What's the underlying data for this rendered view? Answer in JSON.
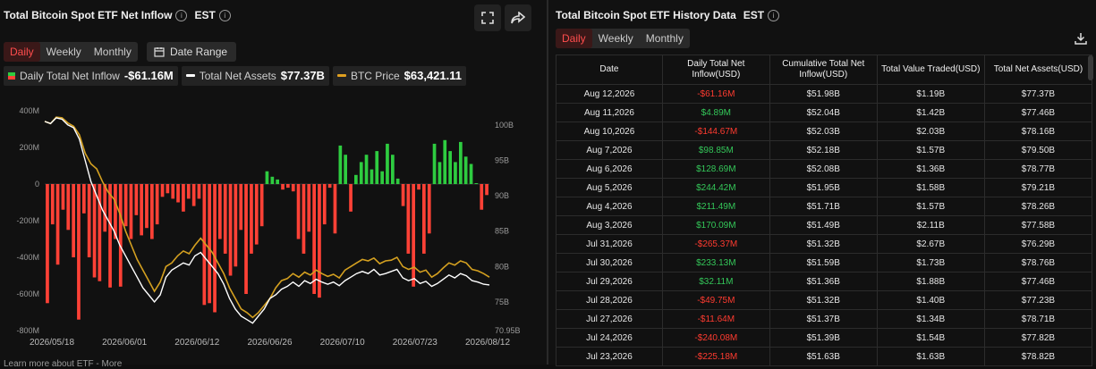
{
  "left_panel": {
    "title": "Total Bitcoin Spot ETF Net Inflow",
    "timezone": "EST",
    "tabs": [
      "Daily",
      "Weekly",
      "Monthly"
    ],
    "active_tab": "Daily",
    "date_range_label": "Date Range",
    "legend": [
      {
        "label": "Daily Total Net Inflow",
        "value": "-$61.16M",
        "color": "#ff4d4d"
      },
      {
        "label": "Total Net Assets",
        "value": "$77.37B",
        "color": "#ffffff"
      },
      {
        "label": "BTC Price",
        "value": "$63,421.11",
        "color": "#e0a020"
      }
    ],
    "footer_text": "Learn more about ETF - More"
  },
  "right_panel": {
    "title": "Total Bitcoin Spot ETF History Data",
    "timezone": "EST",
    "tabs": [
      "Daily",
      "Weekly",
      "Monthly"
    ],
    "active_tab": "Daily",
    "columns": [
      "Date",
      "Daily Total Net Inflow(USD)",
      "Cumulative Total Net Inflow(USD)",
      "Total Value Traded(USD)",
      "Total Net Assets(USD)"
    ],
    "rows": [
      {
        "date": "Aug 12,2026",
        "inflow": "-$61.16M",
        "cum": "$51.98B",
        "traded": "$1.19B",
        "assets": "$77.37B"
      },
      {
        "date": "Aug 11,2026",
        "inflow": "$4.89M",
        "cum": "$52.04B",
        "traded": "$1.42B",
        "assets": "$77.46B"
      },
      {
        "date": "Aug 10,2026",
        "inflow": "-$144.67M",
        "cum": "$52.03B",
        "traded": "$2.03B",
        "assets": "$78.16B"
      },
      {
        "date": "Aug 7,2026",
        "inflow": "$98.85M",
        "cum": "$52.18B",
        "traded": "$1.57B",
        "assets": "$79.50B"
      },
      {
        "date": "Aug 6,2026",
        "inflow": "$128.69M",
        "cum": "$52.08B",
        "traded": "$1.36B",
        "assets": "$78.77B"
      },
      {
        "date": "Aug 5,2026",
        "inflow": "$244.42M",
        "cum": "$51.95B",
        "traded": "$1.58B",
        "assets": "$79.21B"
      },
      {
        "date": "Aug 4,2026",
        "inflow": "$211.49M",
        "cum": "$51.71B",
        "traded": "$1.57B",
        "assets": "$78.26B"
      },
      {
        "date": "Aug 3,2026",
        "inflow": "$170.09M",
        "cum": "$51.49B",
        "traded": "$2.11B",
        "assets": "$77.58B"
      },
      {
        "date": "Jul 31,2026",
        "inflow": "-$265.37M",
        "cum": "$51.32B",
        "traded": "$2.67B",
        "assets": "$76.29B"
      },
      {
        "date": "Jul 30,2026",
        "inflow": "$233.13M",
        "cum": "$51.59B",
        "traded": "$1.73B",
        "assets": "$78.76B"
      },
      {
        "date": "Jul 29,2026",
        "inflow": "$32.11M",
        "cum": "$51.36B",
        "traded": "$1.88B",
        "assets": "$77.46B"
      },
      {
        "date": "Jul 28,2026",
        "inflow": "-$49.75M",
        "cum": "$51.32B",
        "traded": "$1.40B",
        "assets": "$77.23B"
      },
      {
        "date": "Jul 27,2026",
        "inflow": "-$11.64M",
        "cum": "$51.37B",
        "traded": "$1.34B",
        "assets": "$78.71B"
      },
      {
        "date": "Jul 24,2026",
        "inflow": "-$240.08M",
        "cum": "$51.39B",
        "traded": "$1.54B",
        "assets": "$77.82B"
      },
      {
        "date": "Jul 23,2026",
        "inflow": "-$225.18M",
        "cum": "$51.63B",
        "traded": "$1.63B",
        "assets": "$78.82B"
      }
    ]
  },
  "icons": {
    "fullscreen": "fullscreen-icon",
    "share": "share-icon",
    "calendar": "calendar-icon",
    "download": "download-icon",
    "info": "info-icon"
  },
  "chart_data": {
    "type": "bar",
    "left_axis": {
      "ticks": [
        "400M",
        "200M",
        "0",
        "-200M",
        "-400M",
        "-600M",
        "-800M"
      ],
      "range": [
        -800,
        400
      ],
      "unit": "M"
    },
    "right_axis": {
      "ticks": [
        "100B",
        "95B",
        "90B",
        "85B",
        "80B",
        "75B",
        "70.95B"
      ],
      "range": [
        70.95,
        102
      ]
    },
    "x_labels": [
      "2026/05/18",
      "2026/06/01",
      "2026/06/12",
      "2026/06/26",
      "2026/07/10",
      "2026/07/23",
      "2026/08/12"
    ],
    "inflow_values": [
      -650,
      -220,
      -440,
      -140,
      -250,
      -400,
      -740,
      -160,
      -400,
      -510,
      -530,
      -260,
      -565,
      -300,
      -560,
      -230,
      -300,
      -170,
      -280,
      -240,
      -300,
      -220,
      -70,
      -50,
      -80,
      -100,
      -150,
      -80,
      -120,
      -80,
      -660,
      -650,
      -700,
      -300,
      -380,
      -500,
      -450,
      -250,
      -600,
      -380,
      -330,
      -230,
      70,
      40,
      25,
      -30,
      -20,
      -40,
      -300,
      -380,
      -260,
      -600,
      -620,
      -220,
      -20,
      -270,
      210,
      160,
      -150,
      50,
      120,
      160,
      80,
      180,
      70,
      220,
      160,
      30,
      -120,
      -380,
      -560,
      -30,
      -380,
      -270,
      220,
      120,
      240,
      180,
      120,
      230,
      150,
      110,
      5,
      -140,
      -60
    ],
    "btc_price_values": [
      100.5,
      100.2,
      101.1,
      101.0,
      100.3,
      99.8,
      98.6,
      96.0,
      94.5,
      93.8,
      92.0,
      90.5,
      89.5,
      87.5,
      85.0,
      83.0,
      81.0,
      79.5,
      78.0,
      76.5,
      77.8,
      80.0,
      80.5,
      81.5,
      82.2,
      81.8,
      83.0,
      84.0,
      83.0,
      82.0,
      80.5,
      79.0,
      77.0,
      75.5,
      74.0,
      73.5,
      72.8,
      73.5,
      74.5,
      75.5,
      77.0,
      78.0,
      78.3,
      79.0,
      78.5,
      79.2,
      78.8,
      79.5,
      79.0,
      78.6,
      78.9,
      78.4,
      79.5,
      80.0,
      80.5,
      81.0,
      80.8,
      81.2,
      80.4,
      80.8,
      80.9,
      81.3,
      80.0,
      79.6,
      79.9,
      79.2,
      79.5,
      78.5,
      79.0,
      79.8,
      80.5,
      80.2,
      80.8,
      80.5,
      79.6,
      79.4,
      79.0,
      78.5
    ],
    "net_assets_values": [
      100.5,
      100.2,
      101.0,
      100.8,
      100.0,
      99.6,
      98.0,
      95.0,
      92.0,
      90.0,
      88.0,
      86.5,
      85.0,
      83.0,
      81.5,
      80.0,
      78.5,
      77.0,
      76.0,
      75.0,
      76.0,
      78.5,
      79.5,
      80.0,
      80.5,
      80.2,
      81.5,
      82.0,
      81.0,
      80.0,
      79.0,
      77.5,
      75.5,
      74.0,
      73.0,
      72.5,
      72.0,
      73.0,
      74.0,
      75.5,
      76.0,
      76.8,
      77.2,
      77.8,
      77.2,
      78.0,
      77.6,
      78.2,
      77.8,
      77.5,
      77.8,
      77.3,
      78.0,
      78.5,
      79.0,
      79.3,
      79.0,
      79.6,
      78.8,
      79.0,
      79.3,
      79.6,
      78.4,
      78.0,
      78.3,
      77.6,
      77.9,
      77.2,
      77.6,
      78.2,
      78.8,
      78.4,
      79.0,
      78.7,
      78.0,
      77.8,
      77.5,
      77.4
    ],
    "series": [
      {
        "name": "Daily Total Net Inflow",
        "color_pos": "#2ecc40",
        "color_neg": "#ff4136"
      },
      {
        "name": "Total Net Assets",
        "color": "#ffffff"
      },
      {
        "name": "BTC Price",
        "color": "#d4a020"
      }
    ],
    "grid": false,
    "legend_position": "top-left"
  }
}
